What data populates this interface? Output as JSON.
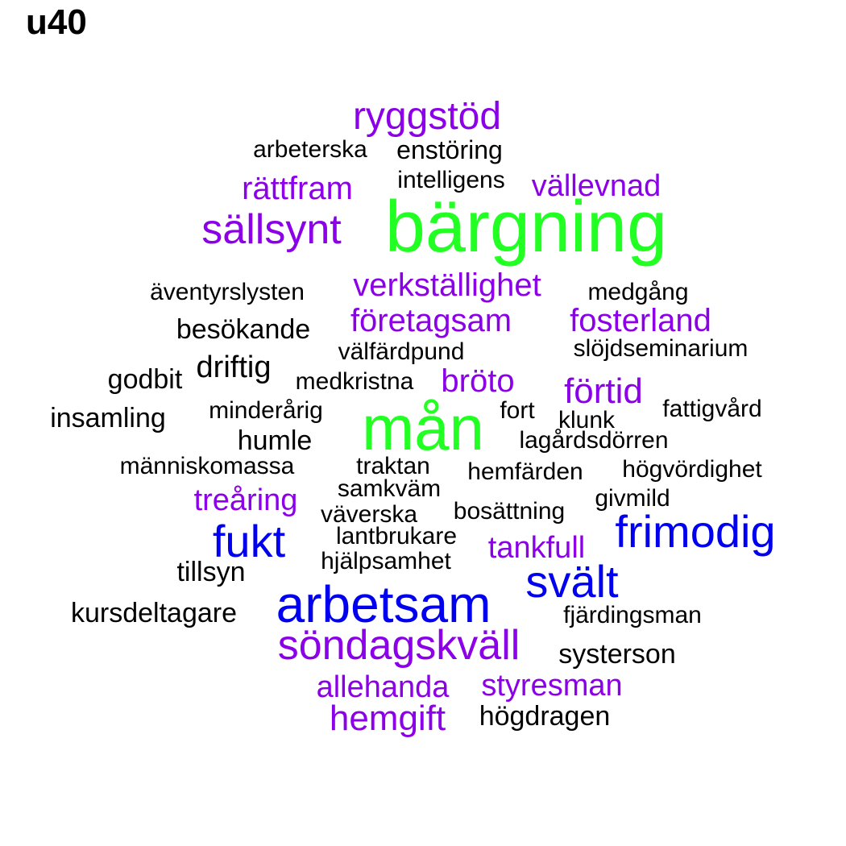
{
  "title": "u40",
  "colors": {
    "green": "#22ff22",
    "blue": "#0000ee",
    "purple": "#8b00e8",
    "black": "#000000"
  },
  "words": [
    {
      "text": "ryggstöd",
      "color": "purple"
    },
    {
      "text": "arbeterska",
      "color": "black"
    },
    {
      "text": "enstöring",
      "color": "black"
    },
    {
      "text": "rättfram",
      "color": "purple"
    },
    {
      "text": "intelligens",
      "color": "black"
    },
    {
      "text": "vällevnad",
      "color": "purple"
    },
    {
      "text": "sällsynt",
      "color": "purple"
    },
    {
      "text": "bärgning",
      "color": "green"
    },
    {
      "text": "äventyrslysten",
      "color": "black"
    },
    {
      "text": "verkställighet",
      "color": "purple"
    },
    {
      "text": "medgång",
      "color": "black"
    },
    {
      "text": "besökande",
      "color": "black"
    },
    {
      "text": "företagsam",
      "color": "purple"
    },
    {
      "text": "fosterland",
      "color": "purple"
    },
    {
      "text": "välfärdpund",
      "color": "black"
    },
    {
      "text": "slöjdseminarium",
      "color": "black"
    },
    {
      "text": "godbit",
      "color": "black"
    },
    {
      "text": "driftig",
      "color": "black"
    },
    {
      "text": "medkristna",
      "color": "black"
    },
    {
      "text": "bröto",
      "color": "purple"
    },
    {
      "text": "förtid",
      "color": "purple"
    },
    {
      "text": "insamling",
      "color": "black"
    },
    {
      "text": "minderårig",
      "color": "black"
    },
    {
      "text": "mån",
      "color": "green"
    },
    {
      "text": "fort",
      "color": "black"
    },
    {
      "text": "klunk",
      "color": "black"
    },
    {
      "text": "fattigvård",
      "color": "black"
    },
    {
      "text": "humle",
      "color": "black"
    },
    {
      "text": "lagårdsdörren",
      "color": "black"
    },
    {
      "text": "människomassa",
      "color": "black"
    },
    {
      "text": "traktan",
      "color": "black"
    },
    {
      "text": "hemfärden",
      "color": "black"
    },
    {
      "text": "högvördighet",
      "color": "black"
    },
    {
      "text": "samkväm",
      "color": "black"
    },
    {
      "text": "treåring",
      "color": "purple"
    },
    {
      "text": "givmild",
      "color": "black"
    },
    {
      "text": "väverska",
      "color": "black"
    },
    {
      "text": "bosättning",
      "color": "black"
    },
    {
      "text": "frimodig",
      "color": "blue"
    },
    {
      "text": "fukt",
      "color": "blue"
    },
    {
      "text": "lantbrukare",
      "color": "black"
    },
    {
      "text": "tankfull",
      "color": "purple"
    },
    {
      "text": "hjälpsamhet",
      "color": "black"
    },
    {
      "text": "tillsyn",
      "color": "black"
    },
    {
      "text": "svält",
      "color": "blue"
    },
    {
      "text": "arbetsam",
      "color": "blue"
    },
    {
      "text": "kursdeltagare",
      "color": "black"
    },
    {
      "text": "fjärdingsman",
      "color": "black"
    },
    {
      "text": "söndagskväll",
      "color": "purple"
    },
    {
      "text": "systerson",
      "color": "black"
    },
    {
      "text": "allehanda",
      "color": "purple"
    },
    {
      "text": "styresman",
      "color": "purple"
    },
    {
      "text": "hemgift",
      "color": "purple"
    },
    {
      "text": "högdragen",
      "color": "black"
    }
  ]
}
